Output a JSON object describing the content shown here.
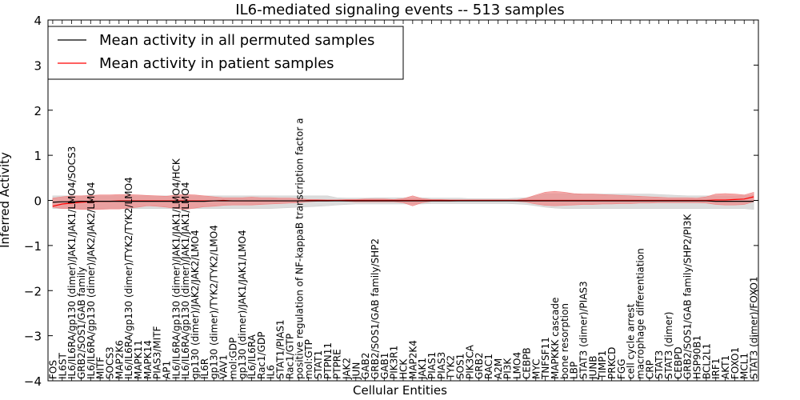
{
  "chart_data": {
    "type": "line",
    "title": "IL6-mediated signaling events -- 513 samples",
    "xlabel": "Cellular Entities",
    "ylabel": "Inferred Activity",
    "ylim": [
      -4,
      4
    ],
    "yticks": [
      -4,
      -3,
      -2,
      -1,
      0,
      1,
      2,
      3,
      4
    ],
    "ytick_labels": [
      "−4",
      "−3",
      "−2",
      "−1",
      "0",
      "1",
      "2",
      "3",
      "4"
    ],
    "legend": {
      "placement": "top-left",
      "entries": [
        {
          "label": "Mean activity in all permuted samples",
          "color": "#000000"
        },
        {
          "label": "Mean activity in patient samples",
          "color": "#ff0000"
        }
      ]
    },
    "colors": {
      "patient_line": "#ff0000",
      "patient_band": "#f08080",
      "permuted_line": "#000000",
      "permuted_band": "#d0d0d0"
    },
    "categories": [
      "FOS",
      "IL6ST",
      "IL6/IL6RA/gp130 (dimer)/JAK1/JAK1/LMO4/SOCS3",
      "GRB2/SOS1/GAB family",
      "IL6/IL6RA/gp130 (dimer)/JAK2/JAK2/LMO4",
      "MITF",
      "SOCS3",
      "MAP2K6",
      "IL6/IL6RA/gp130 (dimer)/TYK2/TYK2/LMO4",
      "MAPK11",
      "MAPK14",
      "PIAS3/MITF",
      "AP1",
      "IL6/IL6RA/gp130 (dimer)/JAK1/JAK1/LMO4/HCK",
      "IL6/IL6RA/gp130 (dimer)/JAK1/JAK1/LMO4",
      "gp130 (dimer)/JAK2/JAK2/LMO4",
      "IL6R",
      "gp130 (dimer)/TYK2/TYK2/LMO4",
      "VAV1",
      "mol:GDP",
      "gp130 (dimer)/JAK1/JAK1/LMO4",
      "IL6/IL6RA",
      "Rac1/GDP",
      "IL6",
      "STAT1/PIAS1",
      "Rac1/GTP",
      "positive regulation of NF-kappaB transcription factor a",
      "mol:GTP",
      "STAT1",
      "PTPN11",
      "PTPRE",
      "JAK2",
      "JUN",
      "GAB2",
      "GRB2/SOS1/GAB family/SHP2",
      "GAB1",
      "PIK3R1",
      "HCK",
      "MAP2K4",
      "JAK1",
      "PIAS1",
      "PIAS3",
      "TYK2",
      "SOS1",
      "PIK3CA",
      "GRB2",
      "RAC1",
      "A2M",
      "PI3K",
      "LMO4",
      "CEBPB",
      "MYC",
      "TNFSF11",
      "MAPKKK cascade",
      "bone resorption",
      "LBP",
      "STAT3 (dimer)/PIAS3",
      "JUNB",
      "TIMP1",
      "PRKCD",
      "FGG",
      "cell cycle arrest",
      "macrophage differentiation",
      "CRP",
      "STAT3",
      "STAT3 (dimer)",
      "CEBPD",
      "GRB2/SOS1/GAB family/SHP2/PI3K",
      "HSP90B1",
      "BCL2L1",
      "IRF1",
      "AKT1",
      "FOXO1",
      "MCL1",
      "STAT3 (dimer)/FOXO1"
    ],
    "series": [
      {
        "name": "Mean activity in patient samples",
        "color": "#ff0000",
        "values": [
          -0.13,
          -0.08,
          -0.06,
          -0.04,
          -0.03,
          -0.02,
          -0.02,
          -0.01,
          -0.01,
          -0.01,
          -0.01,
          -0.01,
          -0.01,
          -0.01,
          -0.01,
          -0.01,
          -0.01,
          -0.01,
          0,
          -0.01,
          -0.01,
          -0.01,
          -0.01,
          -0.01,
          -0.01,
          -0.01,
          -0.01,
          0,
          0,
          0,
          0,
          0,
          0,
          0,
          0,
          0,
          0,
          0,
          0,
          0,
          0,
          0,
          0,
          0,
          0,
          0,
          0,
          0,
          0,
          0,
          0,
          0,
          0,
          0,
          0,
          0,
          0,
          0,
          0,
          0,
          0,
          0,
          0,
          0,
          0,
          0,
          0,
          0,
          0,
          0,
          0.01,
          0.01,
          0.02,
          0.03,
          0.08
        ],
        "band_upper": [
          0.05,
          0.08,
          0.1,
          0.1,
          0.11,
          0.12,
          0.12,
          0.13,
          0.13,
          0.12,
          0.11,
          0.1,
          0.09,
          0.12,
          0.13,
          0.12,
          0.1,
          0.08,
          0.06,
          0.06,
          0.06,
          0.07,
          0.06,
          0.06,
          0.05,
          0.05,
          0.04,
          0.02,
          0.02,
          0.01,
          0.01,
          0.02,
          0.02,
          0.03,
          0.03,
          0.03,
          0.02,
          0.04,
          0.1,
          0.04,
          0.02,
          0.02,
          0.01,
          0.01,
          0.01,
          0.01,
          0.01,
          0.01,
          0.01,
          0.01,
          0.05,
          0.12,
          0.18,
          0.2,
          0.18,
          0.15,
          0.14,
          0.14,
          0.13,
          0.12,
          0.11,
          0.1,
          0.09,
          0.08,
          0.07,
          0.06,
          0.06,
          0.06,
          0.05,
          0.08,
          0.14,
          0.15,
          0.14,
          0.12,
          0.18
        ],
        "band_lower": [
          -0.15,
          -0.18,
          -0.18,
          -0.2,
          -0.2,
          -0.2,
          -0.19,
          -0.19,
          -0.17,
          -0.15,
          -0.12,
          -0.13,
          -0.15,
          -0.18,
          -0.2,
          -0.17,
          -0.14,
          -0.13,
          -0.11,
          -0.1,
          -0.1,
          -0.1,
          -0.09,
          -0.08,
          -0.07,
          -0.06,
          -0.05,
          -0.03,
          -0.02,
          -0.02,
          -0.01,
          -0.02,
          -0.03,
          -0.03,
          -0.03,
          -0.03,
          -0.03,
          -0.05,
          -0.12,
          -0.05,
          -0.02,
          -0.02,
          -0.02,
          -0.01,
          -0.01,
          -0.01,
          -0.01,
          -0.01,
          -0.01,
          -0.02,
          -0.04,
          -0.08,
          -0.11,
          -0.12,
          -0.11,
          -0.1,
          -0.09,
          -0.09,
          -0.08,
          -0.08,
          -0.07,
          -0.07,
          -0.06,
          -0.06,
          -0.05,
          -0.05,
          -0.05,
          -0.05,
          -0.05,
          -0.06,
          -0.09,
          -0.1,
          -0.1,
          -0.09,
          -0.03
        ]
      },
      {
        "name": "Mean activity in all permuted samples",
        "color": "#000000",
        "values": [
          -0.04,
          -0.03,
          -0.03,
          -0.02,
          -0.02,
          -0.02,
          -0.02,
          -0.02,
          -0.02,
          -0.02,
          -0.02,
          -0.02,
          -0.02,
          -0.02,
          -0.02,
          -0.02,
          -0.02,
          -0.01,
          -0.01,
          -0.01,
          -0.01,
          -0.01,
          -0.01,
          -0.01,
          -0.01,
          -0.01,
          -0.01,
          -0.01,
          -0.01,
          -0.01,
          -0.01,
          -0.01,
          -0.01,
          -0.01,
          -0.01,
          -0.01,
          -0.01,
          -0.01,
          -0.01,
          -0.01,
          -0.01,
          -0.01,
          -0.01,
          -0.01,
          -0.01,
          -0.01,
          -0.01,
          -0.01,
          -0.01,
          -0.01,
          -0.01,
          -0.01,
          -0.01,
          -0.01,
          -0.01,
          -0.01,
          -0.01,
          -0.01,
          -0.01,
          -0.01,
          -0.01,
          -0.01,
          -0.01,
          -0.01,
          -0.01,
          -0.01,
          -0.01,
          -0.01,
          -0.01,
          -0.01,
          -0.02,
          -0.02,
          -0.02,
          -0.02,
          -0.02
        ],
        "band_upper": [
          0.1,
          0.1,
          0.1,
          0.1,
          0.1,
          0.1,
          0.1,
          0.1,
          0.1,
          0.1,
          0.1,
          0.1,
          0.1,
          0.1,
          0.1,
          0.1,
          0.1,
          0.1,
          0.1,
          0.1,
          0.1,
          0.1,
          0.1,
          0.1,
          0.1,
          0.1,
          0.1,
          0.1,
          0.1,
          0.1,
          0.06,
          0.05,
          0.05,
          0.05,
          0.06,
          0.06,
          0.06,
          0.06,
          0.06,
          0.06,
          0.05,
          0.05,
          0.05,
          0.05,
          0.04,
          0.04,
          0.04,
          0.04,
          0.04,
          0.05,
          0.06,
          0.1,
          0.15,
          0.15,
          0.15,
          0.15,
          0.14,
          0.14,
          0.14,
          0.14,
          0.14,
          0.14,
          0.14,
          0.14,
          0.13,
          0.12,
          0.11,
          0.1,
          0.1,
          0.1,
          0.1,
          0.1,
          0.1,
          0.1,
          0.12
        ],
        "band_lower": [
          -0.18,
          -0.18,
          -0.18,
          -0.18,
          -0.18,
          -0.18,
          -0.18,
          -0.18,
          -0.18,
          -0.18,
          -0.18,
          -0.18,
          -0.18,
          -0.18,
          -0.18,
          -0.18,
          -0.18,
          -0.18,
          -0.18,
          -0.18,
          -0.18,
          -0.18,
          -0.18,
          -0.18,
          -0.17,
          -0.16,
          -0.15,
          -0.14,
          -0.13,
          -0.12,
          -0.1,
          -0.09,
          -0.08,
          -0.08,
          -0.08,
          -0.08,
          -0.08,
          -0.08,
          -0.08,
          -0.08,
          -0.07,
          -0.07,
          -0.07,
          -0.07,
          -0.07,
          -0.07,
          -0.07,
          -0.07,
          -0.07,
          -0.08,
          -0.09,
          -0.12,
          -0.15,
          -0.17,
          -0.18,
          -0.18,
          -0.18,
          -0.18,
          -0.18,
          -0.18,
          -0.18,
          -0.18,
          -0.18,
          -0.18,
          -0.18,
          -0.18,
          -0.18,
          -0.18,
          -0.18,
          -0.18,
          -0.18,
          -0.18,
          -0.18,
          -0.18,
          -0.2
        ]
      }
    ]
  }
}
